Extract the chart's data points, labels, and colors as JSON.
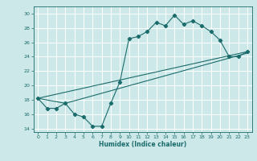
{
  "title": "",
  "xlabel": "Humidex (Indice chaleur)",
  "xlim": [
    -0.5,
    23.5
  ],
  "ylim": [
    13.5,
    31
  ],
  "xticks": [
    0,
    1,
    2,
    3,
    4,
    5,
    6,
    7,
    8,
    9,
    10,
    11,
    12,
    13,
    14,
    15,
    16,
    17,
    18,
    19,
    20,
    21,
    22,
    23
  ],
  "yticks": [
    14,
    16,
    18,
    20,
    22,
    24,
    26,
    28,
    30
  ],
  "bg_color": "#cde8e8",
  "line_color": "#1a6b6b",
  "grid_color": "#ffffff",
  "line1_x": [
    0,
    1,
    2,
    3,
    4,
    5,
    6,
    7,
    8,
    9,
    10,
    11,
    12,
    13,
    14,
    15,
    16,
    17,
    18,
    19,
    20,
    21,
    22,
    23
  ],
  "line1_y": [
    18.2,
    16.8,
    16.8,
    17.5,
    16.0,
    15.6,
    14.3,
    14.3,
    17.5,
    20.5,
    26.5,
    26.8,
    27.5,
    28.8,
    28.3,
    29.8,
    28.5,
    29.0,
    28.3,
    27.5,
    26.3,
    24.0,
    24.0,
    24.7
  ],
  "line2_x": [
    0,
    23
  ],
  "line2_y": [
    18.2,
    24.7
  ],
  "line3_x": [
    0,
    3,
    23
  ],
  "line3_y": [
    18.2,
    17.5,
    24.5
  ]
}
